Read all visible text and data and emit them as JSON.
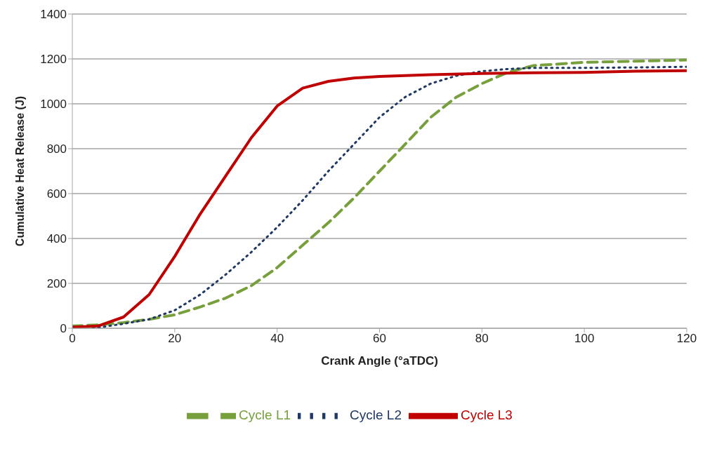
{
  "chart_data": {
    "type": "line",
    "xlabel": "Crank Angle (°aTDC)",
    "ylabel": "Cumulative Heat Release (J)",
    "xlim": [
      0,
      120
    ],
    "xticks": [
      0,
      20,
      40,
      60,
      80,
      100,
      120
    ],
    "ylim": [
      0,
      1400
    ],
    "yticks": [
      0,
      200,
      400,
      600,
      800,
      1000,
      1200,
      1400
    ],
    "grid": "y",
    "legend": "bottom",
    "marker": "none",
    "series": [
      {
        "name": "Cycle L1",
        "color": "#77a03c",
        "line_style": "dashed",
        "x": [
          0,
          5,
          10,
          15,
          20,
          25,
          30,
          35,
          40,
          45,
          50,
          55,
          60,
          65,
          70,
          75,
          80,
          85,
          90,
          100,
          110,
          120
        ],
        "values": [
          10,
          15,
          25,
          40,
          60,
          95,
          135,
          190,
          270,
          370,
          470,
          580,
          700,
          820,
          940,
          1030,
          1090,
          1140,
          1170,
          1185,
          1190,
          1195
        ]
      },
      {
        "name": "Cycle L2",
        "color": "#1f3864",
        "line_style": "dotted",
        "x": [
          4,
          10,
          15,
          20,
          25,
          30,
          35,
          40,
          45,
          50,
          55,
          60,
          65,
          70,
          75,
          80,
          85,
          90,
          100,
          110,
          120
        ],
        "values": [
          0,
          20,
          40,
          80,
          150,
          240,
          340,
          450,
          570,
          700,
          820,
          940,
          1030,
          1090,
          1125,
          1145,
          1155,
          1160,
          1160,
          1162,
          1165
        ]
      },
      {
        "name": "Cycle L3",
        "color": "#c00000",
        "line_style": "solid",
        "x": [
          0,
          5,
          10,
          15,
          20,
          25,
          30,
          35,
          40,
          45,
          50,
          55,
          60,
          70,
          80,
          90,
          100,
          110,
          120
        ],
        "values": [
          5,
          10,
          50,
          150,
          320,
          510,
          680,
          850,
          990,
          1070,
          1100,
          1115,
          1122,
          1130,
          1135,
          1138,
          1140,
          1145,
          1148
        ]
      }
    ]
  }
}
